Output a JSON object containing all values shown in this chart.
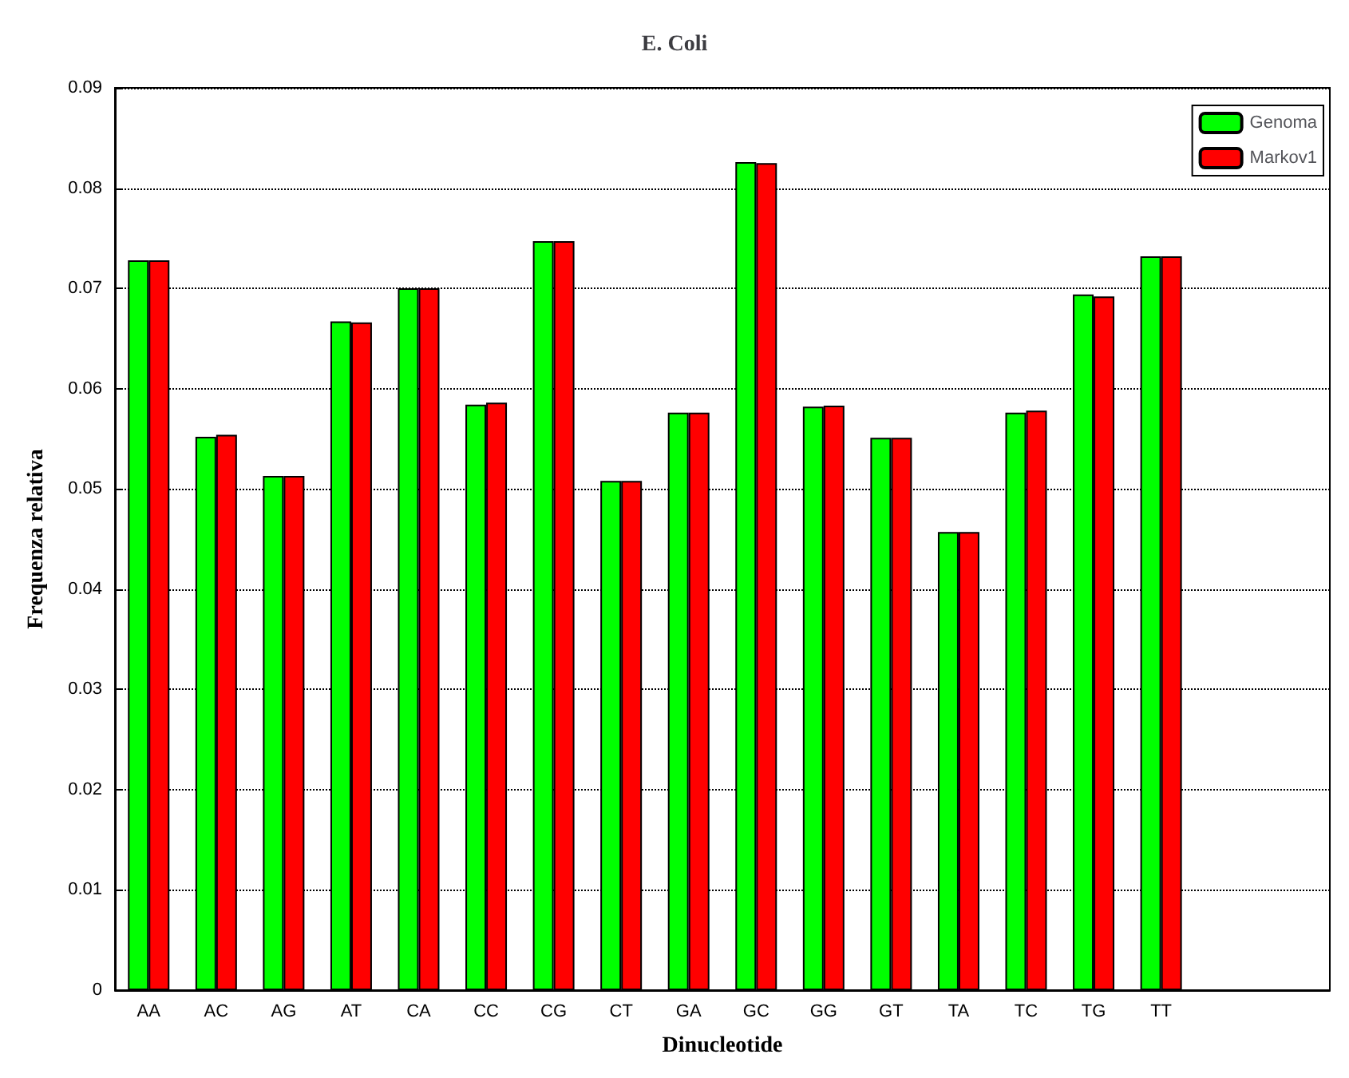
{
  "chart_data": {
    "type": "bar",
    "title": "E. Coli",
    "xlabel": "Dinucleotide",
    "ylabel": "Frequenza relativa",
    "categories": [
      "AA",
      "AC",
      "AG",
      "AT",
      "CA",
      "CC",
      "CG",
      "CT",
      "GA",
      "GC",
      "GG",
      "GT",
      "TA",
      "TC",
      "TG",
      "TT"
    ],
    "series": [
      {
        "name": "Genoma",
        "color": "#00ff00",
        "values": [
          0.0728,
          0.0552,
          0.0513,
          0.0667,
          0.07,
          0.0584,
          0.0747,
          0.0508,
          0.0576,
          0.0826,
          0.0582,
          0.0551,
          0.0457,
          0.0576,
          0.0694,
          0.0732
        ]
      },
      {
        "name": "Markov1",
        "color": "#ff0000",
        "values": [
          0.0728,
          0.0554,
          0.0513,
          0.0666,
          0.07,
          0.0586,
          0.0747,
          0.0508,
          0.0576,
          0.0825,
          0.0583,
          0.0551,
          0.0457,
          0.0578,
          0.0692,
          0.0732
        ]
      }
    ],
    "ylim": [
      0,
      0.09
    ],
    "yticks": [
      0,
      0.01,
      0.02,
      0.03,
      0.04,
      0.05,
      0.06,
      0.07,
      0.08,
      0.09
    ],
    "grid": "y",
    "legend": "top right"
  }
}
